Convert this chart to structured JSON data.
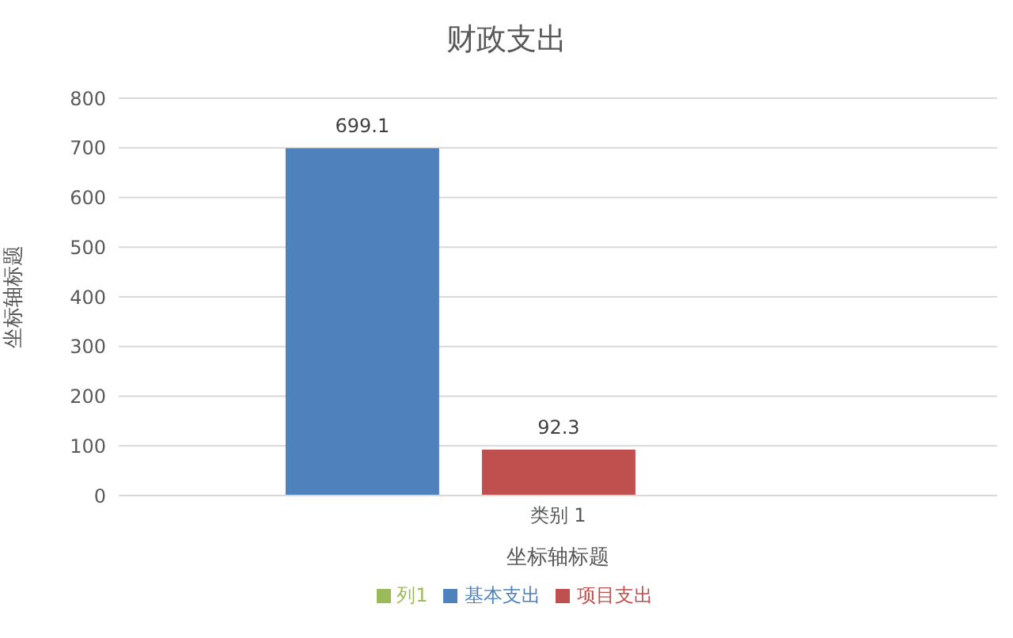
{
  "chart_data": {
    "type": "bar",
    "title": "财政支出",
    "xlabel": "坐标轴标题",
    "ylabel": "坐标轴标题",
    "categories": [
      "类别 1"
    ],
    "series": [
      {
        "name": "基本支出",
        "color": "#4f81bd",
        "values": [
          699.1
        ]
      },
      {
        "name": "项目支出",
        "color": "#c0504d",
        "values": [
          92.3
        ]
      },
      {
        "name": "列1",
        "color": "#9bbb59",
        "values": [
          null
        ]
      }
    ],
    "ylim": [
      0,
      800
    ],
    "yticks": [
      0,
      100,
      200,
      300,
      400,
      500,
      600,
      700,
      800
    ],
    "grid": "y",
    "legend": "bottom",
    "data_labels": true
  }
}
